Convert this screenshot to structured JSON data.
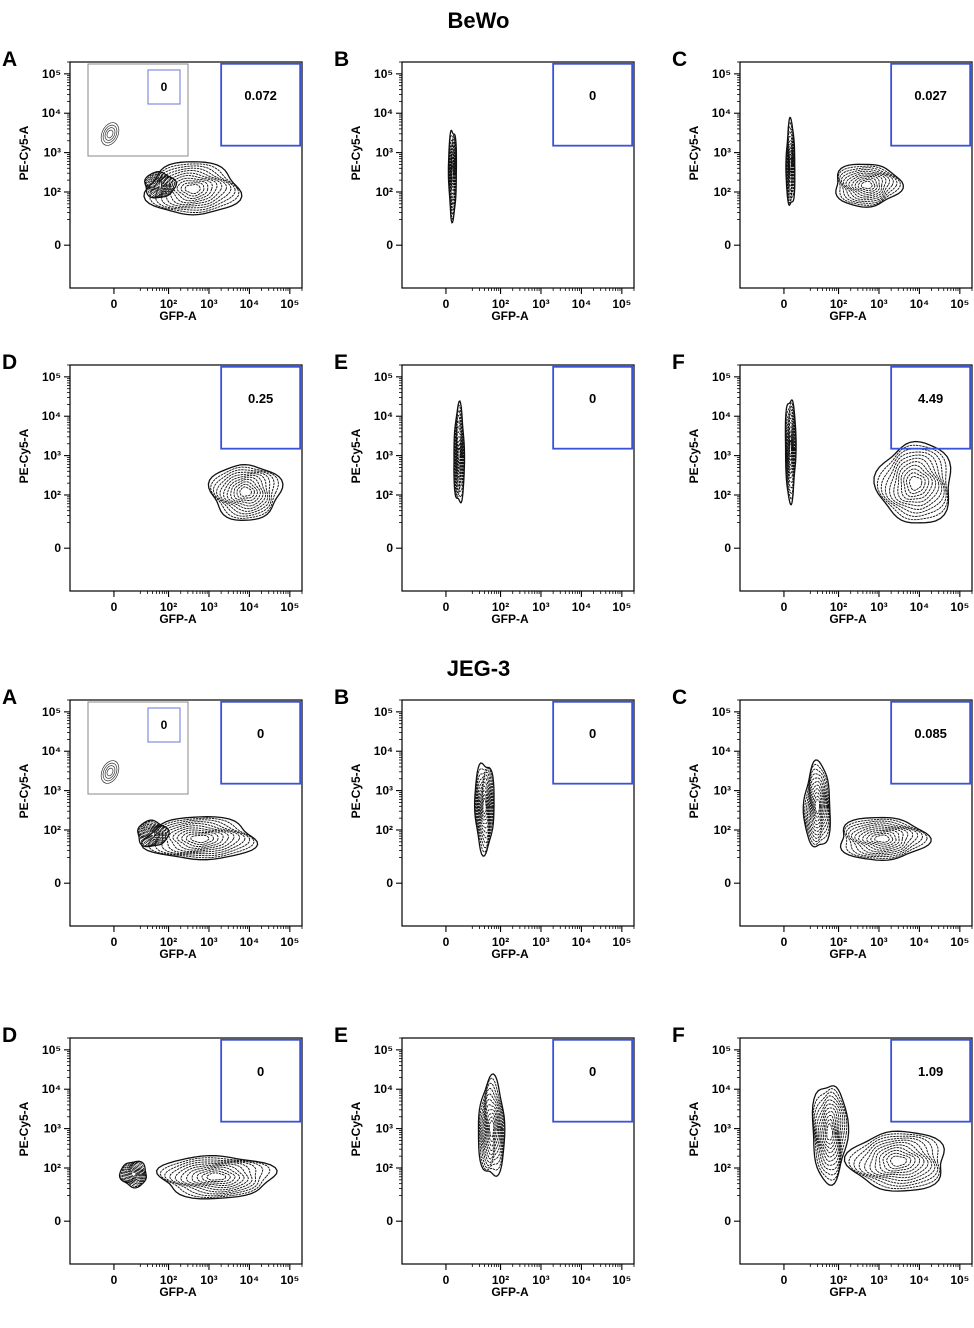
{
  "figure": {
    "sections": [
      {
        "title": "BeWo"
      },
      {
        "title": "JEG-3"
      }
    ]
  },
  "chart_data": [
    {
      "type": "contour",
      "section": "BeWo",
      "panel": "A",
      "xlabel": "GFP-A",
      "ylabel": "PE-Cy5-A",
      "x_ticks": [
        "0",
        "10²",
        "10³",
        "10⁴",
        "10⁵"
      ],
      "y_ticks": [
        "0",
        "10²",
        "10³",
        "10⁴",
        "10⁵"
      ],
      "xlim": [
        -100,
        200000
      ],
      "ylim": [
        -100,
        200000
      ],
      "gate": {
        "x": [
          2000,
          180000
        ],
        "y": [
          1500,
          180000
        ],
        "value": "0.072"
      },
      "inset": {
        "gate_value": "0"
      },
      "populations": [
        {
          "x": 400,
          "y": 120,
          "spread_x": 1.05,
          "spread_y": 0.62
        },
        {
          "x": 60,
          "y": 150,
          "spread_x": 0.35,
          "spread_y": 0.3
        }
      ]
    },
    {
      "type": "contour",
      "section": "BeWo",
      "panel": "B",
      "xlabel": "GFP-A",
      "ylabel": "PE-Cy5-A",
      "x_ticks": [
        "0",
        "10²",
        "10³",
        "10⁴",
        "10⁵"
      ],
      "y_ticks": [
        "0",
        "10²",
        "10³",
        "10⁴",
        "10⁵"
      ],
      "xlim": [
        -100,
        200000
      ],
      "ylim": [
        -100,
        200000
      ],
      "gate": {
        "x": [
          2000,
          180000
        ],
        "y": [
          1500,
          180000
        ],
        "value": "0"
      },
      "populations": [
        {
          "x": 5,
          "y": 300,
          "spread_x": 0.09,
          "spread_y": 1.05
        }
      ]
    },
    {
      "type": "contour",
      "section": "BeWo",
      "panel": "C",
      "xlabel": "GFP-A",
      "ylabel": "PE-Cy5-A",
      "x_ticks": [
        "0",
        "10²",
        "10³",
        "10⁴",
        "10⁵"
      ],
      "y_ticks": [
        "0",
        "10²",
        "10³",
        "10⁴",
        "10⁵"
      ],
      "xlim": [
        -100,
        200000
      ],
      "ylim": [
        -100,
        200000
      ],
      "gate": {
        "x": [
          2000,
          180000
        ],
        "y": [
          1500,
          180000
        ],
        "value": "0.027"
      },
      "populations": [
        {
          "x": 5,
          "y": 500,
          "spread_x": 0.1,
          "spread_y": 1.0
        },
        {
          "x": 500,
          "y": 150,
          "spread_x": 0.75,
          "spread_y": 0.5
        }
      ]
    },
    {
      "type": "contour",
      "section": "BeWo",
      "panel": "D",
      "xlabel": "GFP-A",
      "ylabel": "PE-Cy5-A",
      "x_ticks": [
        "0",
        "10²",
        "10³",
        "10⁴",
        "10⁵"
      ],
      "y_ticks": [
        "0",
        "10²",
        "10³",
        "10⁴",
        "10⁵"
      ],
      "xlim": [
        -100,
        200000
      ],
      "ylim": [
        -100,
        200000
      ],
      "gate": {
        "x": [
          2000,
          180000
        ],
        "y": [
          1500,
          180000
        ],
        "value": "0.25"
      },
      "populations": [
        {
          "x": 8000,
          "y": 120,
          "spread_x": 0.8,
          "spread_y": 0.65
        }
      ]
    },
    {
      "type": "contour",
      "section": "BeWo",
      "panel": "E",
      "xlabel": "GFP-A",
      "ylabel": "PE-Cy5-A",
      "x_ticks": [
        "0",
        "10²",
        "10³",
        "10⁴",
        "10⁵"
      ],
      "y_ticks": [
        "0",
        "10²",
        "10³",
        "10⁴",
        "10⁵"
      ],
      "xlim": [
        -100,
        200000
      ],
      "ylim": [
        -100,
        200000
      ],
      "gate": {
        "x": [
          2000,
          180000
        ],
        "y": [
          1500,
          180000
        ],
        "value": "0"
      },
      "populations": [
        {
          "x": 10,
          "y": 1000,
          "spread_x": 0.12,
          "spread_y": 1.15
        }
      ]
    },
    {
      "type": "contour",
      "section": "BeWo",
      "panel": "F",
      "xlabel": "GFP-A",
      "ylabel": "PE-Cy5-A",
      "x_ticks": [
        "0",
        "10²",
        "10³",
        "10⁴",
        "10⁵"
      ],
      "y_ticks": [
        "0",
        "10²",
        "10³",
        "10⁴",
        "10⁵"
      ],
      "xlim": [
        -100,
        200000
      ],
      "ylim": [
        -100,
        200000
      ],
      "gate": {
        "x": [
          2000,
          180000
        ],
        "y": [
          1500,
          180000
        ],
        "value": "4.49"
      },
      "populations": [
        {
          "x": 5,
          "y": 1500,
          "spread_x": 0.12,
          "spread_y": 1.2
        },
        {
          "x": 8000,
          "y": 200,
          "spread_x": 0.85,
          "spread_y": 0.95
        }
      ]
    },
    {
      "type": "contour",
      "section": "JEG-3",
      "panel": "A",
      "xlabel": "GFP-A",
      "ylabel": "PE-Cy5-A",
      "x_ticks": [
        "0",
        "10²",
        "10³",
        "10⁴",
        "10⁵"
      ],
      "y_ticks": [
        "0",
        "10²",
        "10³",
        "10⁴",
        "10⁵"
      ],
      "xlim": [
        -100,
        200000
      ],
      "ylim": [
        -100,
        200000
      ],
      "gate": {
        "x": [
          2000,
          180000
        ],
        "y": [
          1500,
          180000
        ],
        "value": "0"
      },
      "inset": {
        "gate_value": "0"
      },
      "populations": [
        {
          "x": 600,
          "y": 60,
          "spread_x": 1.25,
          "spread_y": 0.5
        },
        {
          "x": 40,
          "y": 80,
          "spread_x": 0.35,
          "spread_y": 0.3
        }
      ]
    },
    {
      "type": "contour",
      "section": "JEG-3",
      "panel": "B",
      "xlabel": "GFP-A",
      "ylabel": "PE-Cy5-A",
      "x_ticks": [
        "0",
        "10²",
        "10³",
        "10⁴",
        "10⁵"
      ],
      "y_ticks": [
        "0",
        "10²",
        "10³",
        "10⁴",
        "10⁵"
      ],
      "xlim": [
        -100,
        200000
      ],
      "ylim": [
        -100,
        200000
      ],
      "gate": {
        "x": [
          2000,
          180000
        ],
        "y": [
          1500,
          180000
        ],
        "value": "0"
      },
      "populations": [
        {
          "x": 40,
          "y": 400,
          "spread_x": 0.22,
          "spread_y": 1.05
        }
      ]
    },
    {
      "type": "contour",
      "section": "JEG-3",
      "panel": "C",
      "xlabel": "GFP-A",
      "ylabel": "PE-Cy5-A",
      "x_ticks": [
        "0",
        "10²",
        "10³",
        "10⁴",
        "10⁵"
      ],
      "y_ticks": [
        "0",
        "10²",
        "10³",
        "10⁴",
        "10⁵"
      ],
      "xlim": [
        -100,
        200000
      ],
      "ylim": [
        -100,
        200000
      ],
      "gate": {
        "x": [
          2000,
          180000
        ],
        "y": [
          1500,
          180000
        ],
        "value": "0.085"
      },
      "populations": [
        {
          "x": 30,
          "y": 400,
          "spread_x": 0.3,
          "spread_y": 1.0
        },
        {
          "x": 1200,
          "y": 60,
          "spread_x": 1.0,
          "spread_y": 0.5
        }
      ]
    },
    {
      "type": "contour",
      "section": "JEG-3",
      "panel": "D",
      "xlabel": "GFP-A",
      "ylabel": "PE-Cy5-A",
      "x_ticks": [
        "0",
        "10²",
        "10³",
        "10⁴",
        "10⁵"
      ],
      "y_ticks": [
        "0",
        "10²",
        "10³",
        "10⁴",
        "10⁵"
      ],
      "xlim": [
        -100,
        200000
      ],
      "ylim": [
        -100,
        200000
      ],
      "gate": {
        "x": [
          2000,
          180000
        ],
        "y": [
          1500,
          180000
        ],
        "value": "0"
      },
      "populations": [
        {
          "x": 1500,
          "y": 60,
          "spread_x": 1.3,
          "spread_y": 0.5
        },
        {
          "x": 15,
          "y": 70,
          "spread_x": 0.3,
          "spread_y": 0.3
        }
      ]
    },
    {
      "type": "contour",
      "section": "JEG-3",
      "panel": "E",
      "xlabel": "GFP-A",
      "ylabel": "PE-Cy5-A",
      "x_ticks": [
        "0",
        "10²",
        "10³",
        "10⁴",
        "10⁵"
      ],
      "y_ticks": [
        "0",
        "10²",
        "10³",
        "10⁴",
        "10⁵"
      ],
      "xlim": [
        -100,
        200000
      ],
      "ylim": [
        -100,
        200000
      ],
      "gate": {
        "x": [
          2000,
          180000
        ],
        "y": [
          1500,
          180000
        ],
        "value": "0"
      },
      "populations": [
        {
          "x": 60,
          "y": 1000,
          "spread_x": 0.3,
          "spread_y": 1.15
        }
      ]
    },
    {
      "type": "contour",
      "section": "JEG-3",
      "panel": "F",
      "xlabel": "GFP-A",
      "ylabel": "PE-Cy5-A",
      "x_ticks": [
        "0",
        "10²",
        "10³",
        "10⁴",
        "10⁵"
      ],
      "y_ticks": [
        "0",
        "10²",
        "10³",
        "10⁴",
        "10⁵"
      ],
      "xlim": [
        -100,
        200000
      ],
      "ylim": [
        -100,
        200000
      ],
      "gate": {
        "x": [
          2000,
          180000
        ],
        "y": [
          1500,
          180000
        ],
        "value": "1.09"
      },
      "populations": [
        {
          "x": 60,
          "y": 800,
          "spread_x": 0.4,
          "spread_y": 1.15
        },
        {
          "x": 3000,
          "y": 150,
          "spread_x": 1.1,
          "spread_y": 0.7
        }
      ]
    }
  ]
}
